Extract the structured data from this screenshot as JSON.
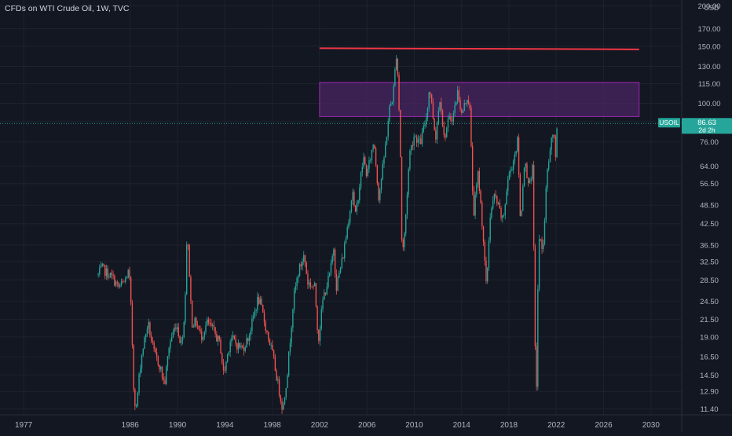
{
  "header": {
    "symbol_line": "CFDs on WTI Crude Oil, 1W, TVC"
  },
  "currency": "USD",
  "colors": {
    "background": "#131722",
    "grid": "#1e222d",
    "up": "#26a69a",
    "down": "#ef5350",
    "resistance_line": "#f23645",
    "zone_fill": "#4a2463",
    "zone_border": "#9c27b0",
    "price_tag": "#26a69a"
  },
  "price_tag": {
    "symbol": "USOIL",
    "price": "86.63",
    "countdown": "2d 2h"
  },
  "chart_data": {
    "type": "candlestick",
    "title": "CFDs on WTI Crude Oil, 1W, TVC",
    "y_scale": "log",
    "ylim": [
      10.8,
      205
    ],
    "xlim": [
      1975.0,
      2032.6
    ],
    "y_ticks": [
      "200.00",
      "170.00",
      "150.00",
      "130.00",
      "115.00",
      "100.00",
      "88.00",
      "76.00",
      "64.00",
      "56.50",
      "48.50",
      "42.50",
      "36.50",
      "32.50",
      "28.50",
      "24.50",
      "21.50",
      "19.00",
      "16.50",
      "14.50",
      "12.90",
      "11.40"
    ],
    "x_ticks": [
      "1977",
      "1986",
      "1990",
      "1994",
      "1998",
      "2002",
      "2006",
      "2010",
      "2014",
      "2018",
      "2022",
      "2026",
      "2030"
    ],
    "grid": true,
    "series": [
      {
        "price_path": [
          [
            1983.3,
            29.5
          ],
          [
            1983.6,
            31
          ],
          [
            1984.0,
            30
          ],
          [
            1984.5,
            29
          ],
          [
            1985.0,
            27
          ],
          [
            1985.5,
            28
          ],
          [
            1985.9,
            30.5
          ],
          [
            1986.1,
            22
          ],
          [
            1986.3,
            13
          ],
          [
            1986.5,
            11.2
          ],
          [
            1986.8,
            15
          ],
          [
            1987.0,
            17
          ],
          [
            1987.5,
            21
          ],
          [
            1988.0,
            17
          ],
          [
            1988.5,
            15.5
          ],
          [
            1988.9,
            13.5
          ],
          [
            1989.3,
            18
          ],
          [
            1989.9,
            21
          ],
          [
            1990.3,
            18
          ],
          [
            1990.6,
            22
          ],
          [
            1990.8,
            40
          ],
          [
            1990.95,
            33
          ],
          [
            1991.2,
            21
          ],
          [
            1991.6,
            21
          ],
          [
            1992.0,
            19
          ],
          [
            1992.5,
            21
          ],
          [
            1993.0,
            20
          ],
          [
            1993.6,
            18
          ],
          [
            1993.9,
            14.5
          ],
          [
            1994.5,
            19
          ],
          [
            1995.0,
            18
          ],
          [
            1995.5,
            17.5
          ],
          [
            1996.0,
            19
          ],
          [
            1996.8,
            25
          ],
          [
            1997.0,
            24
          ],
          [
            1997.5,
            20
          ],
          [
            1998.0,
            17
          ],
          [
            1998.5,
            13.5
          ],
          [
            1998.9,
            11.3
          ],
          [
            1999.3,
            15
          ],
          [
            1999.8,
            25
          ],
          [
            2000.2,
            30
          ],
          [
            2000.7,
            34
          ],
          [
            2001.0,
            28
          ],
          [
            2001.6,
            27
          ],
          [
            2001.9,
            18.5
          ],
          [
            2002.3,
            25
          ],
          [
            2002.9,
            30
          ],
          [
            2003.2,
            36
          ],
          [
            2003.4,
            27
          ],
          [
            2004.0,
            34
          ],
          [
            2004.8,
            54
          ],
          [
            2005.0,
            44
          ],
          [
            2005.7,
            68
          ],
          [
            2006.0,
            60
          ],
          [
            2006.6,
            77
          ],
          [
            2007.0,
            51
          ],
          [
            2007.5,
            70
          ],
          [
            2007.9,
            96
          ],
          [
            2008.2,
            105
          ],
          [
            2008.52,
            147
          ],
          [
            2008.8,
            80
          ],
          [
            2008.97,
            33.5
          ],
          [
            2009.2,
            40
          ],
          [
            2009.6,
            70
          ],
          [
            2010.0,
            80
          ],
          [
            2010.5,
            75
          ],
          [
            2011.0,
            90
          ],
          [
            2011.3,
            113
          ],
          [
            2011.8,
            78
          ],
          [
            2012.2,
            107
          ],
          [
            2012.5,
            78
          ],
          [
            2012.9,
            88
          ],
          [
            2013.3,
            92
          ],
          [
            2013.7,
            110
          ],
          [
            2014.0,
            92
          ],
          [
            2014.5,
            106
          ],
          [
            2014.7,
            95
          ],
          [
            2015.0,
            45
          ],
          [
            2015.4,
            61
          ],
          [
            2015.8,
            40
          ],
          [
            2016.1,
            26.5
          ],
          [
            2016.4,
            45
          ],
          [
            2016.8,
            52
          ],
          [
            2017.5,
            43
          ],
          [
            2017.9,
            58
          ],
          [
            2018.3,
            65
          ],
          [
            2018.75,
            77
          ],
          [
            2018.97,
            42
          ],
          [
            2019.3,
            66
          ],
          [
            2019.8,
            55
          ],
          [
            2020.0,
            63
          ],
          [
            2020.2,
            20
          ],
          [
            2020.3,
            10.8
          ],
          [
            2020.5,
            38
          ],
          [
            2020.9,
            36
          ],
          [
            2021.2,
            60
          ],
          [
            2021.5,
            72
          ],
          [
            2021.8,
            84
          ],
          [
            2021.95,
            65
          ],
          [
            2022.07,
            86.63
          ]
        ]
      }
    ],
    "annotations": [
      {
        "type": "horizontal_line",
        "label": "",
        "x_from": 2002.0,
        "x_to": 2029.0,
        "y": 148
      },
      {
        "type": "rectangle",
        "label": "",
        "x_from": 2002.0,
        "x_to": 2029.0,
        "y_from": 91,
        "y_to": 116
      }
    ],
    "last_price_line": 86.63
  }
}
